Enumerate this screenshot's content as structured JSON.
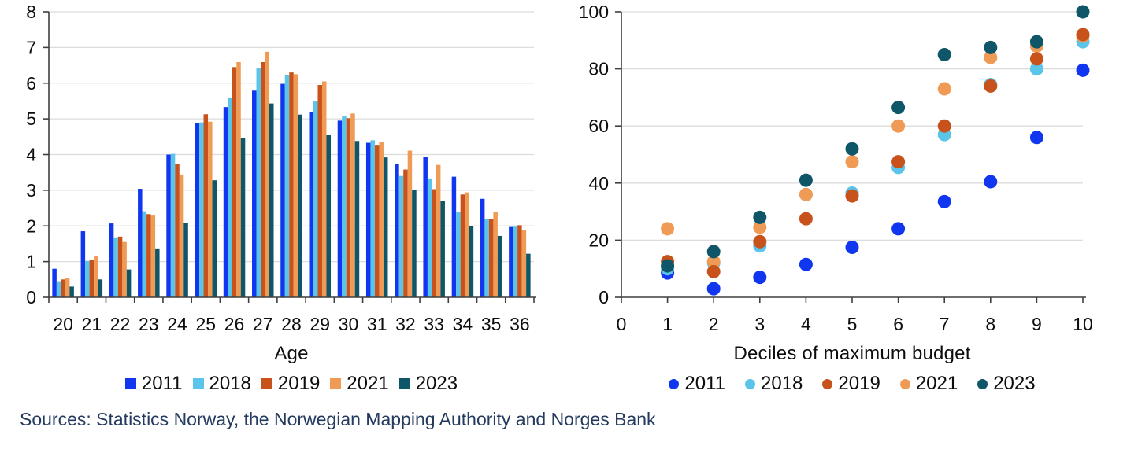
{
  "footer": {
    "sources": "Sources: Statistics Norway, the Norwegian Mapping Authority and Norges Bank"
  },
  "style": {
    "grid_color": "#dcdcdc",
    "axis_color": "#3f3f3f",
    "text_color": "#0d0d0d",
    "source_text_color": "#243a5e"
  },
  "chart_data": [
    {
      "type": "bar",
      "title": "",
      "xlabel": "Age",
      "ylabel": "",
      "ylim": [
        0,
        8
      ],
      "yticks": [
        0,
        1,
        2,
        3,
        4,
        5,
        6,
        7,
        8
      ],
      "grid": true,
      "legend_position": "bottom",
      "legend_marker": "square",
      "categories": [
        "20",
        "21",
        "22",
        "23",
        "24",
        "25",
        "26",
        "27",
        "28",
        "29",
        "30",
        "31",
        "32",
        "33",
        "34",
        "35",
        "36"
      ],
      "series": [
        {
          "name": "2011",
          "color": "#1136ef",
          "values": [
            0.8,
            1.85,
            2.07,
            3.04,
            4.0,
            4.87,
            5.33,
            5.79,
            5.98,
            5.2,
            4.95,
            4.33,
            3.74,
            3.93,
            3.38,
            2.76,
            1.97
          ]
        },
        {
          "name": "2018",
          "color": "#5bc4e9",
          "values": [
            0.45,
            1.02,
            1.68,
            2.41,
            4.02,
            4.9,
            5.6,
            6.42,
            6.23,
            5.49,
            5.07,
            4.4,
            3.4,
            3.33,
            2.39,
            2.2,
            1.98
          ]
        },
        {
          "name": "2019",
          "color": "#c7521b",
          "values": [
            0.5,
            1.05,
            1.7,
            2.33,
            3.74,
            5.13,
            6.45,
            6.59,
            6.3,
            5.95,
            5.02,
            4.25,
            3.58,
            3.03,
            2.88,
            2.2,
            2.02
          ]
        },
        {
          "name": "2021",
          "color": "#f09b55",
          "values": [
            0.55,
            1.15,
            1.55,
            2.29,
            3.44,
            4.92,
            6.59,
            6.88,
            6.25,
            6.05,
            5.15,
            4.36,
            4.11,
            3.71,
            2.94,
            2.4,
            1.89
          ]
        },
        {
          "name": "2023",
          "color": "#0e5668",
          "values": [
            0.3,
            0.5,
            0.78,
            1.37,
            2.09,
            3.28,
            4.47,
            5.43,
            5.12,
            4.54,
            4.38,
            3.92,
            3.01,
            2.71,
            2.0,
            1.72,
            1.22
          ]
        }
      ]
    },
    {
      "type": "scatter",
      "title": "",
      "xlabel": "Deciles of maximum budget",
      "ylabel": "",
      "xlim": [
        0,
        10
      ],
      "ylim": [
        0,
        100
      ],
      "xticks": [
        0,
        1,
        2,
        3,
        4,
        5,
        6,
        7,
        8,
        9,
        10
      ],
      "yticks": [
        0,
        20,
        40,
        60,
        80,
        100
      ],
      "grid": true,
      "legend_position": "bottom",
      "legend_marker": "round",
      "x": [
        1,
        2,
        3,
        4,
        5,
        6,
        7,
        8,
        9,
        10
      ],
      "series": [
        {
          "name": "2011",
          "color": "#1136ef",
          "values": [
            8.5,
            3,
            7,
            11.5,
            17.5,
            24,
            33.5,
            40.5,
            56,
            79.5
          ]
        },
        {
          "name": "2018",
          "color": "#5bc4e9",
          "values": [
            10,
            12,
            18,
            36,
            36.5,
            45.5,
            57,
            74.5,
            80,
            89.5
          ]
        },
        {
          "name": "2019",
          "color": "#c7521b",
          "values": [
            12.5,
            9,
            19.5,
            27.5,
            35.5,
            47.5,
            60,
            74,
            83.5,
            92
          ]
        },
        {
          "name": "2021",
          "color": "#f09b55",
          "values": [
            24,
            12.5,
            24.5,
            36,
            47.5,
            60,
            73,
            84,
            88,
            91.5
          ]
        },
        {
          "name": "2023",
          "color": "#0e5668",
          "values": [
            11,
            16,
            28,
            41,
            52,
            66.5,
            85,
            87.5,
            89.5,
            100
          ]
        }
      ]
    }
  ]
}
